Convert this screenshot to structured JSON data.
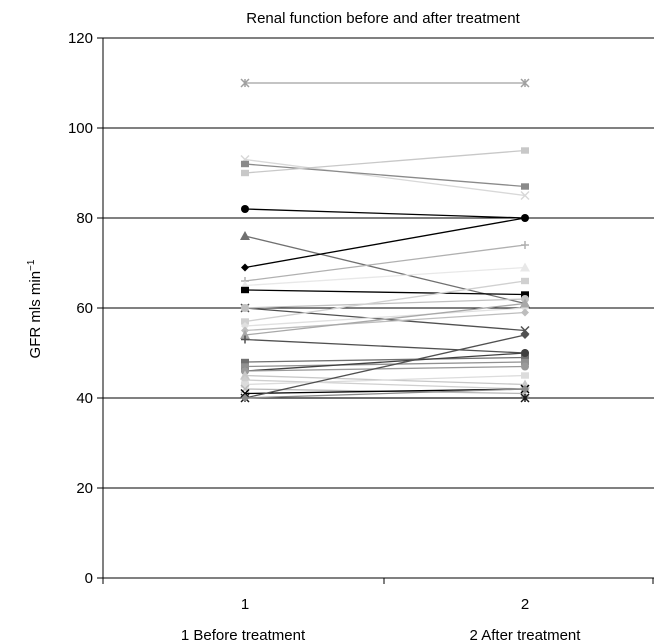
{
  "chart_data": {
    "type": "line",
    "title": "Renal function before and after treatment",
    "ylabel": "GFR mls min",
    "ylabel_superscript": "−1",
    "xlabel_notes": [
      "1 Before treatment",
      "2 After treatment"
    ],
    "categories": [
      "1",
      "2"
    ],
    "ylim": [
      0,
      120
    ],
    "yticks": [
      0,
      20,
      40,
      60,
      80,
      100,
      120
    ],
    "grid": true,
    "legend": "none",
    "series": [
      {
        "values": [
          110,
          110
        ],
        "color": "#a0a0a0",
        "marker": "star"
      },
      {
        "values": [
          93,
          85
        ],
        "color": "#d8d8d8",
        "marker": "x"
      },
      {
        "values": [
          92,
          87
        ],
        "color": "#8a8a8a",
        "marker": "square"
      },
      {
        "values": [
          90,
          95
        ],
        "color": "#c8c8c8",
        "marker": "square"
      },
      {
        "values": [
          82,
          80
        ],
        "color": "#000000",
        "marker": "circle"
      },
      {
        "values": [
          76,
          61
        ],
        "color": "#707070",
        "marker": "triangle"
      },
      {
        "values": [
          69,
          80
        ],
        "color": "#000000",
        "marker": "diamond"
      },
      {
        "values": [
          66,
          74
        ],
        "color": "#b0b0b0",
        "marker": "plus"
      },
      {
        "values": [
          65,
          69
        ],
        "color": "#e8e8e8",
        "marker": "triangle"
      },
      {
        "values": [
          64,
          63
        ],
        "color": "#000000",
        "marker": "square"
      },
      {
        "values": [
          60,
          55
        ],
        "color": "#505050",
        "marker": "x"
      },
      {
        "values": [
          60,
          62
        ],
        "color": "#c0c0c0",
        "marker": "circle"
      },
      {
        "values": [
          57,
          66
        ],
        "color": "#d0d0d0",
        "marker": "square"
      },
      {
        "values": [
          56,
          60
        ],
        "color": "#e0e0e0",
        "marker": "diamond"
      },
      {
        "values": [
          55,
          59
        ],
        "color": "#bdbdbd",
        "marker": "diamond"
      },
      {
        "values": [
          54,
          61
        ],
        "color": "#a8a8a8",
        "marker": "triangle"
      },
      {
        "values": [
          53,
          50
        ],
        "color": "#505050",
        "marker": "plus"
      },
      {
        "values": [
          48,
          49
        ],
        "color": "#707070",
        "marker": "square"
      },
      {
        "values": [
          47,
          48
        ],
        "color": "#909090",
        "marker": "square"
      },
      {
        "values": [
          46,
          50
        ],
        "color": "#404040",
        "marker": "circle"
      },
      {
        "values": [
          46,
          47
        ],
        "color": "#9a9a9a",
        "marker": "circle"
      },
      {
        "values": [
          45,
          43
        ],
        "color": "#c8c8c8",
        "marker": "triangle"
      },
      {
        "values": [
          44,
          42
        ],
        "color": "#cfcfcf",
        "marker": "diamond"
      },
      {
        "values": [
          43,
          45
        ],
        "color": "#dcdcdc",
        "marker": "square"
      },
      {
        "values": [
          42,
          41
        ],
        "color": "#b8b8b8",
        "marker": "x"
      },
      {
        "values": [
          41,
          42
        ],
        "color": "#000000",
        "marker": "x"
      },
      {
        "values": [
          40,
          54
        ],
        "color": "#505050",
        "marker": "diamond"
      },
      {
        "values": [
          40,
          40
        ],
        "color": "#1a1a1a",
        "marker": "star"
      },
      {
        "values": [
          40,
          42
        ],
        "color": "#8a8a8a",
        "marker": "diamond"
      }
    ]
  }
}
